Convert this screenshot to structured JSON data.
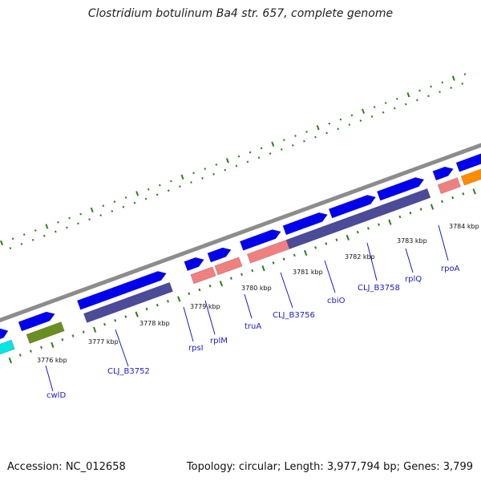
{
  "title": "Clostridium botulinum Ba4 str. 657, complete genome",
  "footer": {
    "accession": "Accession: NC_012658",
    "topology": "Topology: circular; Length: 3,977,794 bp; Genes: 3,799"
  },
  "colors": {
    "backbone": "#8c8c8c",
    "cds": "#0000ee",
    "trna_cyan": "#00e5e5",
    "olive": "#6b8e23",
    "slate": "#4b4b9a",
    "rrna_pink": "#f08080",
    "orange": "#ff8c00",
    "gc_dot": "#2e7d1e",
    "label": "#1a1acc"
  },
  "tick_labels": [
    {
      "text": "3776 kbp"
    },
    {
      "text": "3777 kbp"
    },
    {
      "text": "3778 kbp"
    },
    {
      "text": "3779 kbp"
    },
    {
      "text": "3780 kbp"
    },
    {
      "text": "3781 kbp"
    },
    {
      "text": "3782 kbp"
    },
    {
      "text": "3783 kbp"
    },
    {
      "text": "3784 kbp"
    }
  ],
  "gene_labels": [
    {
      "text": "cwlD"
    },
    {
      "text": "CLJ_B3752"
    },
    {
      "text": "rpsI"
    },
    {
      "text": "rplM"
    },
    {
      "text": "truA"
    },
    {
      "text": "CLJ_B3756"
    },
    {
      "text": "cbiO"
    },
    {
      "text": "CLJ_B3758"
    },
    {
      "text": "rplQ"
    },
    {
      "text": "rpoA"
    }
  ]
}
